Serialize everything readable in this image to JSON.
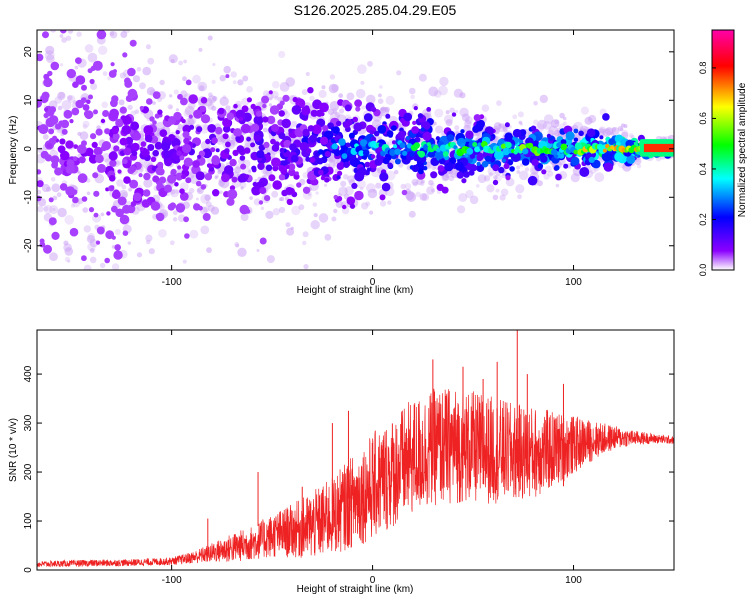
{
  "title": "S126.2025.285.04.29.E05",
  "chart_data": [
    {
      "type": "heatmap",
      "xlabel": "Height of straight line (km)",
      "ylabel": "Frequency (Hz)",
      "xlim": [
        -167,
        150
      ],
      "ylim": [
        -25,
        24.5
      ],
      "xticks": [
        -100,
        0,
        100
      ],
      "yticks": [
        -20,
        -10,
        0,
        10,
        20
      ],
      "colorbar": {
        "label": "Normalized spectral amplitude",
        "range": [
          0,
          0.95
        ],
        "ticks": [
          "0.0",
          "0.2",
          "0.4",
          "0.6",
          "0.8"
        ],
        "colormap": [
          "#ffffff",
          "#8b00ff",
          "#0000ff",
          "#00ffff",
          "#00ff00",
          "#ffff00",
          "#ff0000",
          "#ff00aa"
        ]
      },
      "description_points": [
        {
          "x": -150,
          "spread_hz": 24,
          "amp": 0.1
        },
        {
          "x": -100,
          "spread_hz": 12,
          "amp": 0.15
        },
        {
          "x": -50,
          "spread_hz": 10,
          "amp": 0.2
        },
        {
          "x": 0,
          "spread_hz": 7,
          "amp": 0.35
        },
        {
          "x": 50,
          "spread_hz": 5,
          "amp": 0.45
        },
        {
          "x": 100,
          "spread_hz": 4,
          "amp": 0.5
        },
        {
          "x": 140,
          "spread_hz": 1,
          "amp": 0.9
        }
      ]
    },
    {
      "type": "line",
      "xlabel": "Height of straight line (km)",
      "ylabel": "SNR (10 * v/v)",
      "xlim": [
        -167,
        150
      ],
      "ylim": [
        0,
        490
      ],
      "xticks": [
        -100,
        0,
        100
      ],
      "yticks": [
        0,
        100,
        200,
        300,
        400
      ],
      "color": "#ee2222",
      "series": [
        {
          "x": [
            -167,
            -140,
            -120,
            -100,
            -90,
            -80,
            -70,
            -60,
            -50,
            -40,
            -30,
            -20,
            -10,
            0,
            10,
            20,
            30,
            40,
            50,
            60,
            70,
            80,
            90,
            100,
            110,
            120,
            130,
            140,
            150
          ],
          "y": [
            12,
            14,
            15,
            18,
            25,
            35,
            45,
            55,
            70,
            80,
            90,
            110,
            140,
            170,
            200,
            230,
            250,
            255,
            250,
            245,
            240,
            240,
            245,
            255,
            265,
            270,
            270,
            268,
            265
          ],
          "spread": [
            6,
            7,
            7,
            8,
            12,
            20,
            30,
            35,
            45,
            55,
            70,
            80,
            95,
            110,
            115,
            120,
            120,
            120,
            115,
            110,
            100,
            95,
            80,
            60,
            40,
            25,
            15,
            10,
            8
          ],
          "spikes": [
            {
              "x": -82,
              "y": 105
            },
            {
              "x": -57,
              "y": 200
            },
            {
              "x": -35,
              "y": 170
            },
            {
              "x": -20,
              "y": 300
            },
            {
              "x": -12,
              "y": 325
            },
            {
              "x": 30,
              "y": 430
            },
            {
              "x": 45,
              "y": 415
            },
            {
              "x": 55,
              "y": 390
            },
            {
              "x": 62,
              "y": 425
            },
            {
              "x": 72,
              "y": 490
            },
            {
              "x": 77,
              "y": 400
            },
            {
              "x": 95,
              "y": 380
            }
          ]
        }
      ]
    }
  ]
}
